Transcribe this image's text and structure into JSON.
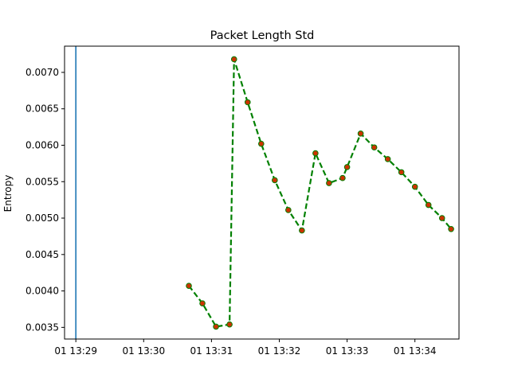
{
  "chart_data": {
    "type": "line",
    "title": "Packet Length Std",
    "xlabel": "",
    "ylabel": "Entropy",
    "grid": false,
    "legend": "none",
    "x_tick_labels": [
      "01 13:29",
      "01 13:30",
      "01 13:31",
      "01 13:32",
      "01 13:33",
      "01 13:34"
    ],
    "x_tick_times": [
      "13:29:00",
      "13:30:00",
      "13:31:00",
      "13:32:00",
      "13:33:00",
      "13:34:00"
    ],
    "xlim": [
      "13:28:50",
      "13:34:39"
    ],
    "ylim": [
      0.00334,
      0.00736
    ],
    "y_ticks": [
      0.0035,
      0.004,
      0.0045,
      0.005,
      0.0055,
      0.006,
      0.0065,
      0.007
    ],
    "y_tick_labels": [
      "0.0035",
      "0.0040",
      "0.0045",
      "0.0050",
      "0.0055",
      "0.0060",
      "0.0065",
      "0.0070"
    ],
    "vertical_line": {
      "x": "13:29:00",
      "color": "#1f77b4"
    },
    "series": [
      {
        "line_color": "#008000",
        "line_style": "dashed",
        "marker_color": "#cc3300",
        "x": [
          "13:30:40",
          "13:30:52",
          "13:31:04",
          "13:31:16",
          "13:31:20",
          "13:31:32",
          "13:31:44",
          "13:31:56",
          "13:32:08",
          "13:32:20",
          "13:32:32",
          "13:32:44",
          "13:32:56",
          "13:33:00",
          "13:33:12",
          "13:33:24",
          "13:33:36",
          "13:33:48",
          "13:34:00",
          "13:34:12",
          "13:34:24",
          "13:34:32"
        ],
        "y": [
          0.00407,
          0.00383,
          0.00351,
          0.00354,
          0.00718,
          0.00659,
          0.00602,
          0.00552,
          0.00511,
          0.00483,
          0.00589,
          0.00548,
          0.00555,
          0.0057,
          0.00616,
          0.00597,
          0.00581,
          0.00563,
          0.00543,
          0.00518,
          0.005,
          0.00485
        ]
      }
    ]
  }
}
